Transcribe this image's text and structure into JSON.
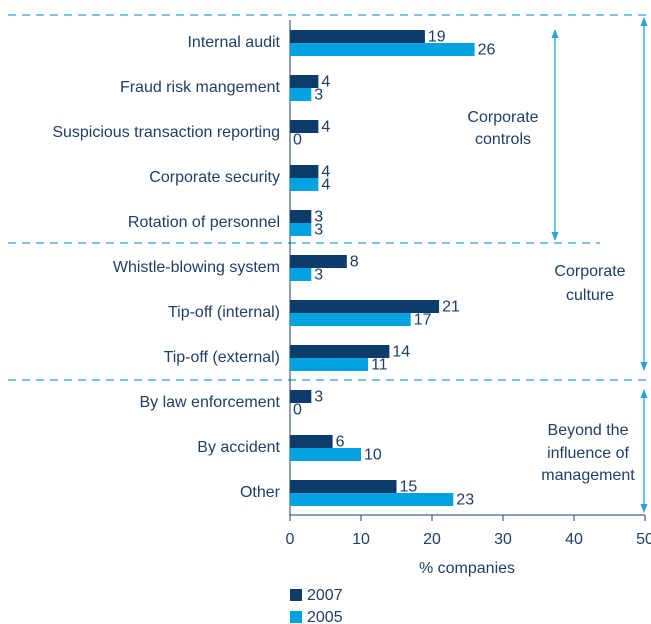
{
  "chart_data": {
    "type": "bar",
    "orientation": "horizontal",
    "categories": [
      "Internal audit",
      "Fraud risk mangement",
      "Suspicious transaction reporting",
      "Corporate security",
      "Rotation of personnel",
      "Whistle-blowing system",
      "Tip-off (internal)",
      "Tip-off (external)",
      "By law enforcement",
      "By accident",
      "Other"
    ],
    "series": [
      {
        "name": "2007",
        "color": "#0d3b6a",
        "values": [
          19,
          4,
          4,
          4,
          3,
          8,
          21,
          14,
          3,
          6,
          15
        ]
      },
      {
        "name": "2005",
        "color": "#00a3e0",
        "values": [
          26,
          3,
          0,
          4,
          3,
          3,
          17,
          11,
          0,
          10,
          23
        ]
      }
    ],
    "xlim": [
      0,
      50
    ],
    "xticks": [
      0,
      10,
      20,
      30,
      40,
      50
    ],
    "xlabel": "% companies",
    "annotations": [
      {
        "lines": [
          "Corporate",
          "controls"
        ]
      },
      {
        "lines": [
          "Corporate",
          "culture"
        ]
      },
      {
        "lines": [
          "Beyond the",
          "influence of",
          "management"
        ]
      }
    ],
    "legend": "bottom-left"
  }
}
